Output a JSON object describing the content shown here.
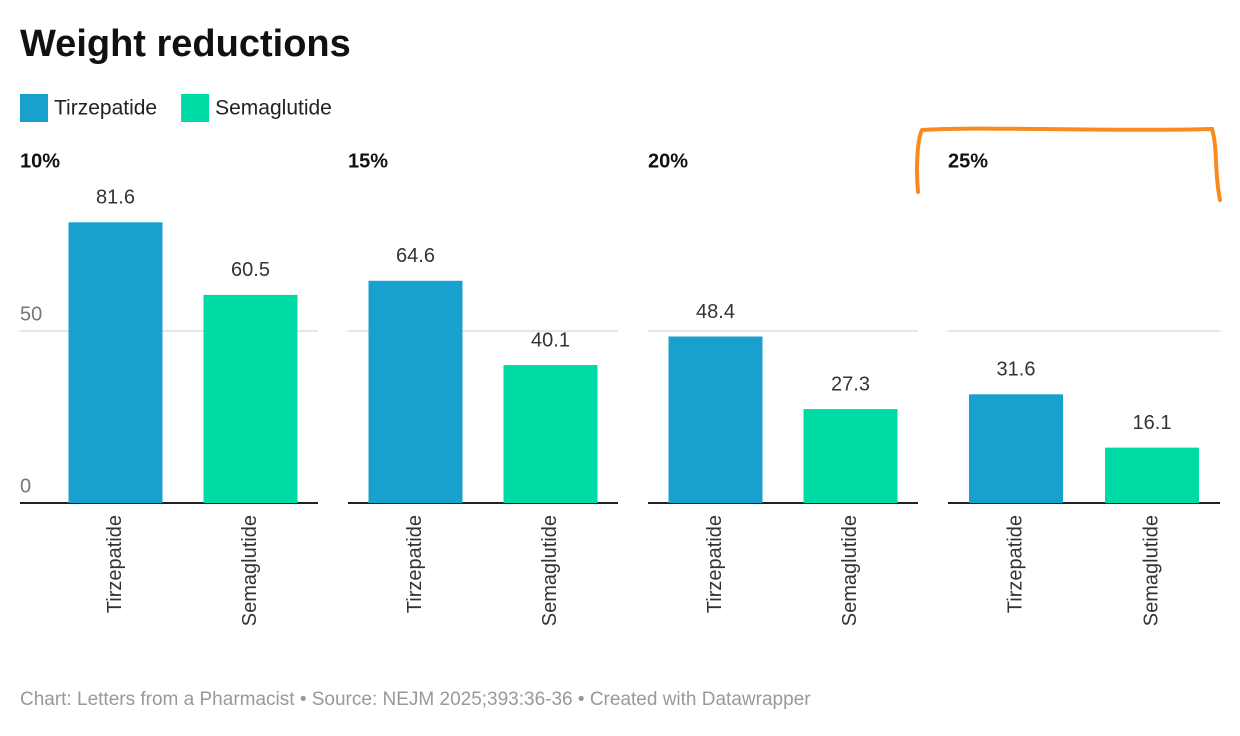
{
  "title": "Weight reductions",
  "legend": [
    {
      "name": "Tirzepatide",
      "color": "#1aa0cd"
    },
    {
      "name": "Semaglutide",
      "color": "#00dba6"
    }
  ],
  "source": "Chart: Letters from a Pharmacist • Source: NEJM 2025;393:36-36 • Created with Datawrapper",
  "chart_data": [
    {
      "type": "bar",
      "title": "10%",
      "categories": [
        "Tirzepatide",
        "Semaglutide"
      ],
      "values": [
        81.6,
        60.5
      ],
      "ylim": [
        0,
        90
      ],
      "yticks": [
        0,
        50
      ],
      "grid": true
    },
    {
      "type": "bar",
      "title": "15%",
      "categories": [
        "Tirzepatide",
        "Semaglutide"
      ],
      "values": [
        64.6,
        40.1
      ],
      "ylim": [
        0,
        90
      ],
      "yticks": [
        0,
        50
      ],
      "grid": true
    },
    {
      "type": "bar",
      "title": "20%",
      "categories": [
        "Tirzepatide",
        "Semaglutide"
      ],
      "values": [
        48.4,
        27.3
      ],
      "ylim": [
        0,
        90
      ],
      "yticks": [
        0,
        50
      ],
      "grid": true
    },
    {
      "type": "bar",
      "title": "25%",
      "categories": [
        "Tirzepatide",
        "Semaglutide"
      ],
      "values": [
        31.6,
        16.1
      ],
      "ylim": [
        0,
        90
      ],
      "yticks": [
        0,
        50
      ],
      "grid": true
    }
  ]
}
